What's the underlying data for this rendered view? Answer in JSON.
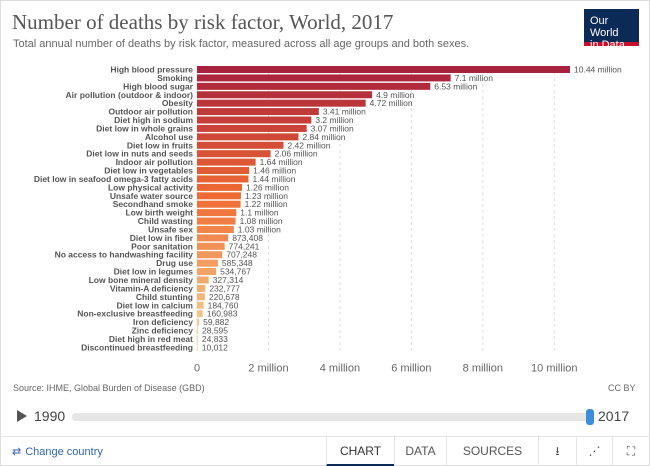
{
  "header": {
    "title": "Number of deaths by risk factor, World, 2017",
    "subtitle": "Total annual number of deaths by risk factor, measured across all age groups and both sexes.",
    "logo_line1": "Our World",
    "logo_line2": "in Data"
  },
  "footer": {
    "source": "Source: IHME, Global Burden of Disease (GBD)",
    "license": "CC BY"
  },
  "timeline": {
    "start_year": "1990",
    "end_year": "2017",
    "position": 1.0
  },
  "controls": {
    "change_country": "Change country",
    "tabs": [
      "CHART",
      "DATA",
      "SOURCES"
    ],
    "active_tab": "CHART",
    "icons": [
      "download-icon",
      "share-icon",
      "fullscreen-icon"
    ]
  },
  "colors": {
    "bar_start": "#a8213e",
    "bar_mid": "#ef6a32",
    "bar_end": "#f7dc9a",
    "logo_bg": "#0b2a55",
    "logo_accent": "#c8102e",
    "link": "#3366aa",
    "timeline_handle": "#3b8fd9"
  },
  "chart_data": {
    "type": "bar",
    "orientation": "horizontal",
    "title": "Number of deaths by risk factor, World, 2017",
    "xlim": [
      0,
      11000000
    ],
    "x_ticks": [
      0,
      2000000,
      4000000,
      6000000,
      8000000,
      10000000
    ],
    "x_tick_labels": [
      "0",
      "2 million",
      "4 million",
      "6 million",
      "8 million",
      "10 million"
    ],
    "grid": "vertical-dashed",
    "categories": [
      "High blood pressure",
      "Smoking",
      "High blood sugar",
      "Air pollution (outdoor & indoor)",
      "Obesity",
      "Outdoor air pollution",
      "Diet high in sodium",
      "Diet low in whole grains",
      "Alcohol use",
      "Diet low in fruits",
      "Diet low in nuts and seeds",
      "Indoor air pollution",
      "Diet low in vegetables",
      "Diet low in seafood omega-3 fatty acids",
      "Low physical activity",
      "Unsafe water source",
      "Secondhand smoke",
      "Low birth weight",
      "Child wasting",
      "Unsafe sex",
      "Diet low in fiber",
      "Poor sanitation",
      "No access to handwashing facility",
      "Drug use",
      "Diet low in legumes",
      "Low bone mineral density",
      "Vitamin-A deficiency",
      "Child stunting",
      "Diet low in calcium",
      "Non-exclusive breastfeeding",
      "Iron deficiency",
      "Zinc deficiency",
      "Diet high in red meat",
      "Discontinued breastfeeding"
    ],
    "values": [
      10440000,
      7100000,
      6530000,
      4900000,
      4720000,
      3410000,
      3200000,
      3070000,
      2840000,
      2420000,
      2060000,
      1640000,
      1460000,
      1440000,
      1260000,
      1230000,
      1220000,
      1100000,
      1080000,
      1030000,
      873408,
      774241,
      707248,
      585348,
      534767,
      327314,
      232777,
      220678,
      184760,
      160983,
      59882,
      28595,
      24833,
      10012
    ],
    "value_labels": [
      "10.44 million",
      "7.1 million",
      "6.53 million",
      "4.9 million",
      "4.72 million",
      "3.41 million",
      "3.2 million",
      "3.07 million",
      "2.84 million",
      "2.42 million",
      "2.06 million",
      "1.64 million",
      "1.46 million",
      "1.44 million",
      "1.26 million",
      "1.23 million",
      "1.22 million",
      "1.1 million",
      "1.08 million",
      "1.03 million",
      "873,408",
      "774,241",
      "707,248",
      "585,348",
      "534,767",
      "327,314",
      "232,777",
      "220,678",
      "184,760",
      "160,983",
      "59,882",
      "28,595",
      "24,833",
      "10,012"
    ]
  }
}
